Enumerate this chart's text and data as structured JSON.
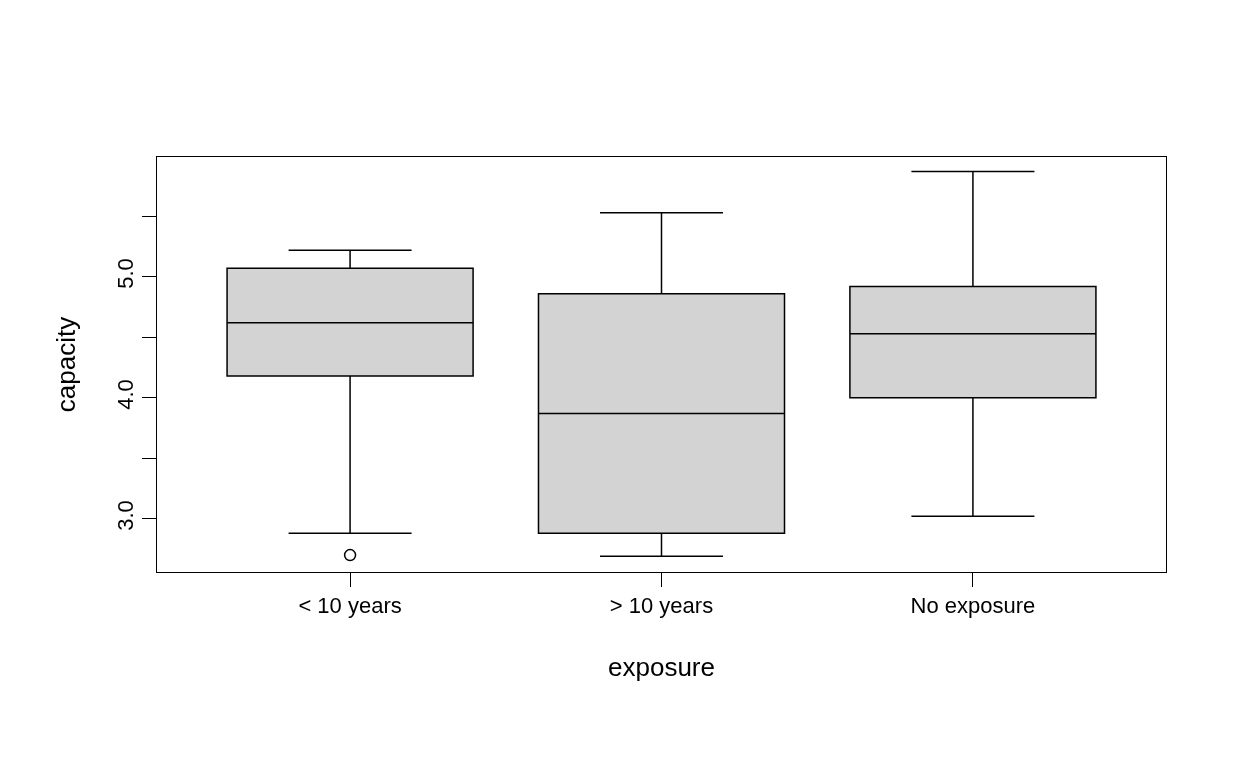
{
  "chart_data": {
    "type": "box",
    "xlabel": "exposure",
    "ylabel": "capacity",
    "categories": [
      "< 10 years",
      "> 10 years",
      "No exposure"
    ],
    "boxes": [
      {
        "low": 2.88,
        "q1": 4.18,
        "median": 4.62,
        "q3": 5.07,
        "high": 5.22,
        "outliers": [
          2.7
        ]
      },
      {
        "low": 2.69,
        "q1": 2.88,
        "median": 3.87,
        "q3": 4.86,
        "high": 5.53
      },
      {
        "low": 3.02,
        "q1": 4.0,
        "median": 4.53,
        "q3": 4.92,
        "high": 5.87
      }
    ],
    "color": "#d3d3d3",
    "ylim": [
      2.56,
      5.99
    ],
    "yticks": [
      {
        "value": 3,
        "label": "3.0"
      },
      {
        "value": 3.5,
        "label": null
      },
      {
        "value": 4,
        "label": "4.0"
      },
      {
        "value": 4.5,
        "label": null
      },
      {
        "value": 5,
        "label": "5.0"
      },
      {
        "value": 5.5,
        "label": null
      }
    ]
  }
}
